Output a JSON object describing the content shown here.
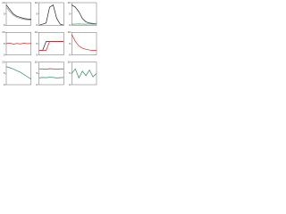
{
  "chart_data": [
    {
      "type": "line",
      "x": [
        0,
        1,
        2,
        3,
        4,
        5,
        6,
        7
      ],
      "xlim": [
        0,
        7
      ],
      "ylim": [
        0,
        10
      ],
      "yticks": [
        0,
        5,
        10
      ],
      "series": [
        {
          "color": "#222222",
          "values": [
            9,
            7,
            5,
            4,
            3.5,
            3,
            2.8,
            2.7
          ]
        },
        {
          "color": "#999999",
          "values": [
            8,
            6,
            4.5,
            3.5,
            3,
            2.6,
            2.4,
            2.3
          ]
        }
      ]
    },
    {
      "type": "line",
      "x": [
        0,
        1,
        2,
        3,
        4,
        5,
        6,
        7
      ],
      "xlim": [
        0,
        7
      ],
      "ylim": [
        0,
        10
      ],
      "yticks": [
        0,
        5,
        10
      ],
      "series": [
        {
          "color": "#222222",
          "values": [
            0,
            0.5,
            1,
            8,
            9,
            3,
            0.5,
            0
          ]
        }
      ]
    },
    {
      "type": "line",
      "x": [
        0,
        1,
        2,
        3,
        4,
        5,
        6,
        7
      ],
      "xlim": [
        0,
        7
      ],
      "ylim": [
        0,
        10
      ],
      "yticks": [
        0,
        5,
        10
      ],
      "series": [
        {
          "color": "#222222",
          "values": [
            9,
            8,
            6,
            3,
            1.5,
            1,
            0.8,
            0.6
          ]
        },
        {
          "color": "#2e8b57",
          "values": [
            0.5,
            0.5,
            0.6,
            0.5,
            0.5,
            0.6,
            0.5,
            0.5
          ]
        }
      ]
    },
    {
      "type": "line",
      "x": [
        0,
        1,
        2,
        3,
        4,
        5,
        6,
        7
      ],
      "xlim": [
        0,
        7
      ],
      "ylim": [
        0,
        10
      ],
      "yticks": [
        0,
        5,
        10
      ],
      "series": [
        {
          "color": "#d62728",
          "values": [
            5,
            5.3,
            4.8,
            5.1,
            4.9,
            5.2,
            5,
            5.1
          ]
        }
      ]
    },
    {
      "type": "line",
      "x": [
        0,
        1,
        2,
        3,
        4,
        5,
        6,
        7
      ],
      "xlim": [
        0,
        7
      ],
      "ylim": [
        0,
        10
      ],
      "yticks": [
        0,
        5,
        10
      ],
      "series": [
        {
          "color": "#222222",
          "values": [
            2,
            2,
            6,
            6,
            6,
            6,
            6,
            6
          ]
        },
        {
          "color": "#d62728",
          "values": [
            2,
            2,
            2,
            6,
            6,
            6,
            6,
            6
          ]
        }
      ]
    },
    {
      "type": "line",
      "x": [
        0,
        1,
        2,
        3,
        4,
        5,
        6,
        7
      ],
      "xlim": [
        0,
        7
      ],
      "ylim": [
        0,
        10
      ],
      "yticks": [
        0,
        5,
        10
      ],
      "series": [
        {
          "color": "#d62728",
          "values": [
            9,
            6,
            4,
            3,
            2.5,
            2.2,
            2,
            2
          ]
        }
      ]
    },
    {
      "type": "line",
      "x": [
        0,
        1,
        2,
        3,
        4,
        5,
        6,
        7
      ],
      "xlim": [
        0,
        7
      ],
      "ylim": [
        0,
        10
      ],
      "yticks": [
        0,
        5,
        10
      ],
      "series": [
        {
          "color": "#2e8b57",
          "values": [
            8,
            7.5,
            7,
            6.2,
            5.5,
            4.5,
            3.5,
            2.5
          ]
        }
      ]
    },
    {
      "type": "line",
      "x": [
        0,
        1,
        2,
        3,
        4,
        5,
        6,
        7
      ],
      "xlim": [
        0,
        7
      ],
      "ylim": [
        0,
        10
      ],
      "yticks": [
        0,
        5,
        10
      ],
      "series": [
        {
          "color": "#2e8b57",
          "values": [
            3,
            3.2,
            3.1,
            3.3,
            3.2,
            3,
            3.1,
            3.2
          ]
        },
        {
          "color": "#d62728",
          "values": [
            7,
            7,
            6.8,
            7.1,
            7,
            6.9,
            7,
            7
          ]
        }
      ]
    },
    {
      "type": "line",
      "x": [
        0,
        1,
        2,
        3,
        4,
        5,
        6,
        7
      ],
      "xlim": [
        0,
        7
      ],
      "ylim": [
        0,
        10
      ],
      "yticks": [
        0,
        5,
        10
      ],
      "series": [
        {
          "color": "#2e8b57",
          "values": [
            5,
            7,
            3,
            6,
            4,
            6.5,
            3.5,
            5
          ]
        }
      ]
    }
  ]
}
